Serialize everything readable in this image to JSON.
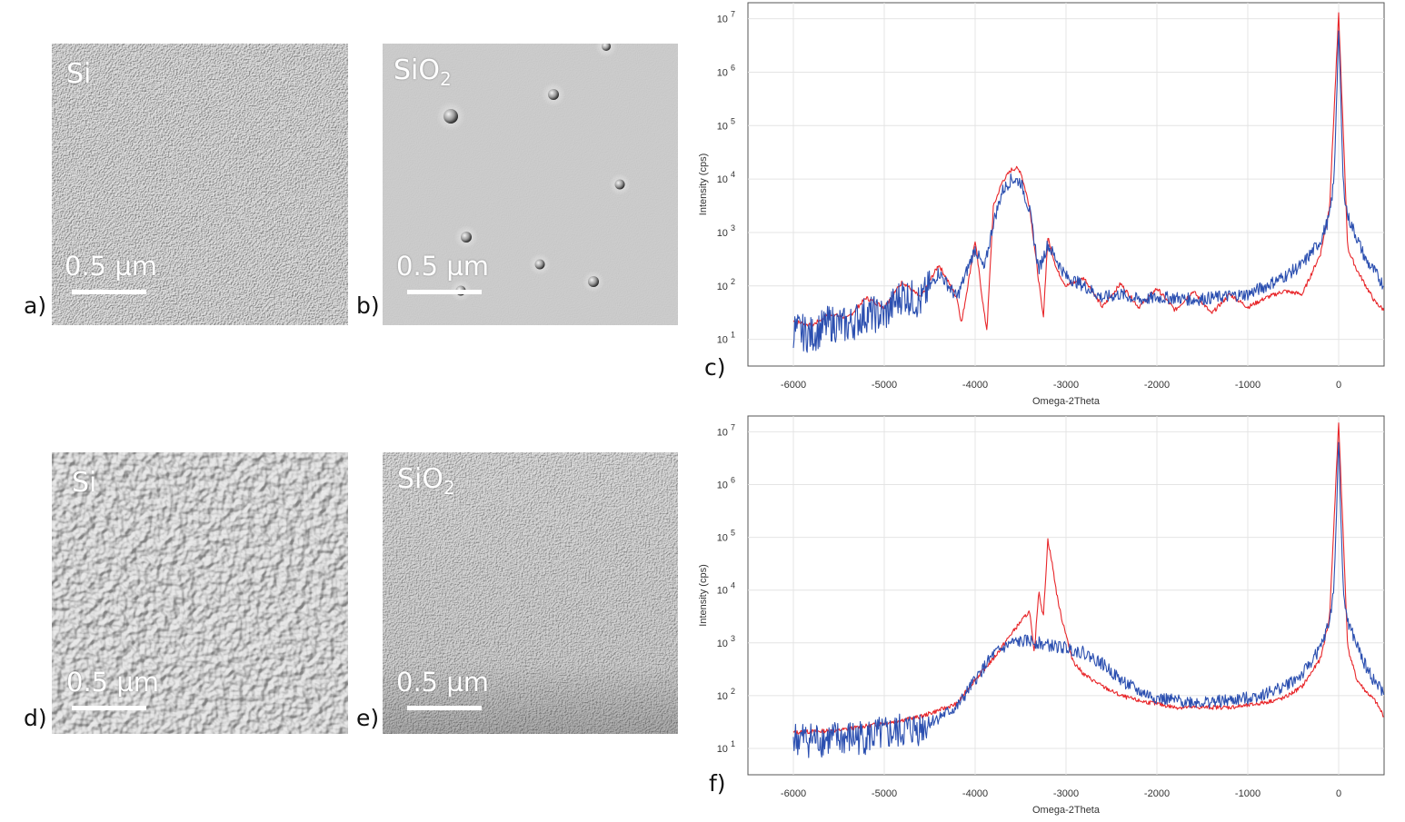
{
  "micrographs": [
    {
      "id": "a",
      "letter": "a)",
      "material_main": "Si",
      "material_sub": "",
      "scale": "0.5 µm",
      "texture": "fine"
    },
    {
      "id": "b",
      "letter": "b)",
      "material_main": "SiO",
      "material_sub": "2",
      "scale": "0.5 µm",
      "texture": "smooth-particles"
    },
    {
      "id": "d",
      "letter": "d)",
      "material_main": "Si",
      "material_sub": "",
      "scale": "0.5 µm",
      "texture": "coarse"
    },
    {
      "id": "e",
      "letter": "e)",
      "material_main": "SiO",
      "material_sub": "2",
      "scale": "0.5 µm",
      "texture": "fine"
    }
  ],
  "charts": {
    "c": {
      "letter": "c)"
    },
    "f": {
      "letter": "f)"
    }
  },
  "chart_data": [
    {
      "type": "line",
      "panel": "c)",
      "xlabel": "Omega-2Theta",
      "ylabel": "Intensity (cps)",
      "xlim": [
        -6500,
        500
      ],
      "ylim_log10": [
        0.5,
        7.3
      ],
      "y_scale": "log",
      "x_ticks": [
        -6000,
        -5000,
        -4000,
        -3000,
        -2000,
        -1000,
        0
      ],
      "x_tick_labels": [
        "-6000",
        "-5000",
        "-4000",
        "-3000",
        "-2000",
        "-1000",
        "0"
      ],
      "y_ticks_exp": [
        1,
        2,
        3,
        4,
        5,
        6,
        7
      ],
      "y_tick_base": "10",
      "grid": true,
      "series": [
        {
          "color": "#e8262a",
          "x": [
            -6000,
            -5800,
            -5600,
            -5400,
            -5200,
            -5000,
            -4800,
            -4600,
            -4400,
            -4200,
            -4150,
            -4000,
            -3900,
            -3870,
            -3800,
            -3700,
            -3600,
            -3550,
            -3500,
            -3400,
            -3300,
            -3250,
            -3200,
            -3100,
            -3000,
            -2800,
            -2600,
            -2400,
            -2200,
            -2000,
            -1800,
            -1600,
            -1400,
            -1200,
            -1000,
            -800,
            -600,
            -400,
            -200,
            -100,
            0,
            100,
            200,
            300,
            400,
            500
          ],
          "y": [
            22,
            18,
            30,
            25,
            60,
            40,
            120,
            60,
            250,
            60,
            20,
            700,
            30,
            15,
            3000,
            9000,
            15000,
            16000,
            14000,
            3000,
            120,
            25,
            800,
            200,
            100,
            140,
            40,
            110,
            40,
            90,
            35,
            80,
            30,
            70,
            40,
            60,
            80,
            70,
            400,
            3000,
            12000000,
            500,
            200,
            100,
            50,
            35
          ]
        },
        {
          "color": "#2b4fb0",
          "x": [
            -6000,
            -5800,
            -5600,
            -5400,
            -5200,
            -5000,
            -4800,
            -4600,
            -4400,
            -4200,
            -4000,
            -3900,
            -3800,
            -3700,
            -3600,
            -3500,
            -3400,
            -3300,
            -3200,
            -3000,
            -2800,
            -2600,
            -2400,
            -2200,
            -2000,
            -1800,
            -1600,
            -1400,
            -1200,
            -1000,
            -800,
            -600,
            -400,
            -200,
            -100,
            -50,
            0,
            50,
            100,
            200,
            300,
            400,
            500
          ],
          "y": [
            15,
            12,
            20,
            18,
            30,
            28,
            70,
            50,
            180,
            60,
            500,
            200,
            1500,
            6000,
            10000,
            9000,
            2500,
            200,
            600,
            150,
            100,
            60,
            70,
            55,
            60,
            60,
            55,
            60,
            65,
            70,
            100,
            150,
            250,
            700,
            2000,
            10000,
            7000000,
            8000,
            2000,
            800,
            300,
            180,
            100
          ]
        }
      ]
    },
    {
      "type": "line",
      "panel": "f)",
      "xlabel": "Omega-2Theta",
      "ylabel": "Intensity (cps)",
      "xlim": [
        -6500,
        500
      ],
      "ylim_log10": [
        0.5,
        7.3
      ],
      "y_scale": "log",
      "x_ticks": [
        -6000,
        -5000,
        -4000,
        -3000,
        -2000,
        -1000,
        0
      ],
      "x_tick_labels": [
        "-6000",
        "-5000",
        "-4000",
        "-3000",
        "-2000",
        "-1000",
        "0"
      ],
      "y_ticks_exp": [
        1,
        2,
        3,
        4,
        5,
        6,
        7
      ],
      "y_tick_base": "10",
      "grid": true,
      "series": [
        {
          "color": "#e8262a",
          "x": [
            -6000,
            -5500,
            -5000,
            -4600,
            -4200,
            -4000,
            -3800,
            -3600,
            -3500,
            -3400,
            -3350,
            -3300,
            -3250,
            -3200,
            -3150,
            -3100,
            -3050,
            -3000,
            -2950,
            -2900,
            -2800,
            -2600,
            -2400,
            -2200,
            -2000,
            -1800,
            -1500,
            -1200,
            -1000,
            -800,
            -600,
            -400,
            -200,
            -100,
            0,
            100,
            200,
            300,
            400,
            500
          ],
          "y": [
            20,
            22,
            30,
            40,
            70,
            200,
            500,
            1500,
            2500,
            4000,
            600,
            10000,
            3000,
            90000,
            30000,
            8000,
            3000,
            1500,
            600,
            400,
            250,
            150,
            100,
            80,
            70,
            60,
            60,
            60,
            65,
            75,
            90,
            150,
            500,
            3000,
            15000000,
            800,
            200,
            120,
            80,
            40
          ]
        },
        {
          "color": "#2b4fb0",
          "x": [
            -6000,
            -5500,
            -5000,
            -4600,
            -4200,
            -4000,
            -3800,
            -3600,
            -3400,
            -3200,
            -3000,
            -2800,
            -2600,
            -2400,
            -2200,
            -2000,
            -1800,
            -1500,
            -1200,
            -1000,
            -800,
            -600,
            -400,
            -200,
            -100,
            -50,
            0,
            50,
            100,
            200,
            300,
            400,
            500
          ],
          "y": [
            15,
            15,
            18,
            25,
            60,
            200,
            600,
            1000,
            1100,
            900,
            800,
            650,
            400,
            200,
            120,
            90,
            80,
            75,
            80,
            90,
            110,
            150,
            250,
            800,
            2500,
            12000,
            7000000,
            9000,
            2500,
            900,
            350,
            180,
            110
          ]
        }
      ]
    }
  ]
}
